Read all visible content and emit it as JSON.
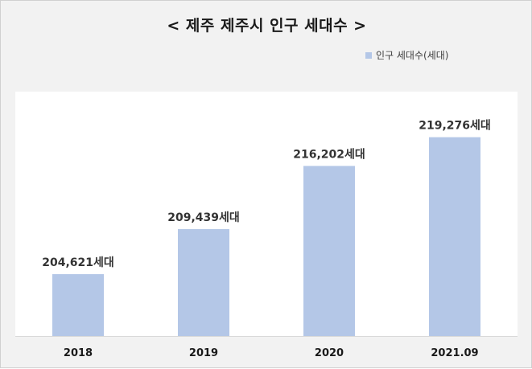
{
  "chart_data": {
    "type": "bar",
    "title": "< 제주 제주시 인구 세대수 >",
    "categories": [
      "2018",
      "2019",
      "2020",
      "2021.09"
    ],
    "series": [
      {
        "name": "인구 세대수(세대)",
        "values": [
          204621,
          209439,
          216202,
          219276
        ],
        "data_labels": [
          "204,621세대",
          "209,439세대",
          "216,202세대",
          "219,276세대"
        ]
      }
    ],
    "legend_position": "top-right",
    "grid": false,
    "colors": {
      "bar": "#b4c7e7",
      "frame_background": "#f2f2f2",
      "plot_background": "#ffffff",
      "axis": "#d9d9d9"
    }
  }
}
